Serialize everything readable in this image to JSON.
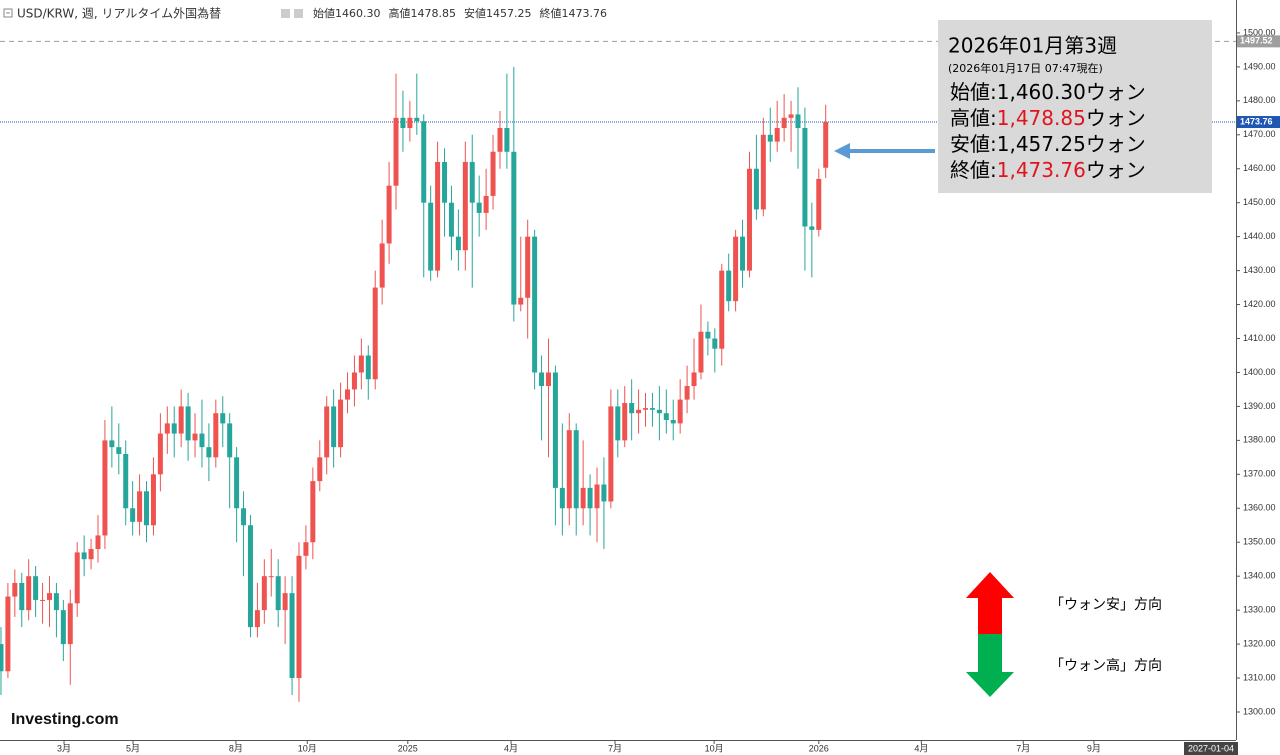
{
  "chart_data": {
    "type": "candlestick",
    "header": {
      "symbol": "USD/KRW, 週, リアルタイム外国為替",
      "ohlc": [
        {
          "label": "始値",
          "value": "1460.30"
        },
        {
          "label": "高値",
          "value": "1478.85"
        },
        {
          "label": "安値",
          "value": "1457.25"
        },
        {
          "label": "終値",
          "value": "1473.76"
        }
      ]
    },
    "annotation": {
      "title": "2026年01月第3週",
      "subtitle": "(2026年01月17日 07:47現在)",
      "unit": "ウォン",
      "rows": [
        {
          "label": "始値:",
          "value": "1,460.30",
          "color": "#000000"
        },
        {
          "label": "高値:",
          "value": "1,478.85",
          "color": "#e0141e"
        },
        {
          "label": "安値:",
          "value": "1,457.25",
          "color": "#000000"
        },
        {
          "label": "終値:",
          "value": "1,473.76",
          "color": "#e0141e"
        }
      ]
    },
    "legend": [
      {
        "label": "「ウォン安」方向",
        "color": "#ff0000"
      },
      {
        "label": "「ウォン高」方向",
        "color": "#00b050"
      }
    ],
    "logo": "Investing.com",
    "crosshair_date": "2027-01-04",
    "up_color": "#ef5350",
    "down_color": "#26a69a",
    "open": [
      1320,
      1312,
      1334,
      1338,
      1330,
      1340,
      1333,
      1333,
      1335,
      1330,
      1320,
      1332,
      1347,
      1345,
      1348,
      1352,
      1380,
      1378,
      1376,
      1360,
      1356,
      1365,
      1355,
      1370,
      1382,
      1385,
      1382,
      1390,
      1380,
      1382,
      1378,
      1375,
      1388,
      1385,
      1375,
      1360,
      1355,
      1325,
      1330,
      1340,
      1340,
      1330,
      1335,
      1310,
      1346,
      1350,
      1368,
      1375,
      1390,
      1378,
      1392,
      1395,
      1400,
      1405,
      1398,
      1425,
      1438,
      1455,
      1475,
      1472,
      1475,
      1474,
      1450,
      1430,
      1462,
      1450,
      1440,
      1436,
      1462,
      1450,
      1447,
      1452,
      1465,
      1472,
      1465,
      1420,
      1422,
      1440,
      1400,
      1396,
      1400,
      1366,
      1360,
      1383,
      1360,
      1366,
      1360,
      1367,
      1362,
      1390,
      1380,
      1391,
      1388,
      1389,
      1389.5,
      1389,
      1388,
      1386,
      1385,
      1392,
      1396,
      1400,
      1412,
      1410,
      1407,
      1430,
      1421,
      1440,
      1430,
      1460,
      1448,
      1470,
      1468,
      1472,
      1475,
      1476,
      1472,
      1443,
      1442,
      1460.3
    ],
    "high": [
      1325,
      1338,
      1342,
      1341,
      1345,
      1343,
      1338,
      1340,
      1338,
      1333,
      1336,
      1350,
      1352,
      1351,
      1358,
      1386,
      1390,
      1385,
      1380,
      1368,
      1370,
      1368,
      1375,
      1388,
      1390,
      1390,
      1395,
      1394,
      1388,
      1392,
      1385,
      1392,
      1393,
      1388,
      1378,
      1365,
      1358,
      1338,
      1345,
      1348,
      1345,
      1340,
      1340,
      1350,
      1355,
      1372,
      1380,
      1393,
      1395,
      1397,
      1400,
      1405,
      1410,
      1408,
      1430,
      1445,
      1462,
      1488,
      1483,
      1480,
      1488,
      1476,
      1455,
      1468,
      1466,
      1455,
      1448,
      1468,
      1470,
      1458,
      1460,
      1470,
      1477,
      1488,
      1490,
      1440,
      1445,
      1442,
      1405,
      1410,
      1402,
      1385,
      1388,
      1385,
      1380,
      1370,
      1372,
      1375,
      1395,
      1395,
      1396,
      1398,
      1395,
      1394,
      1394,
      1396,
      1395,
      1392,
      1398,
      1402,
      1410,
      1420,
      1415,
      1413,
      1432,
      1435,
      1442,
      1445,
      1465,
      1470,
      1475,
      1478,
      1480,
      1482,
      1480,
      1484,
      1478,
      1450,
      1460,
      1478.85
    ],
    "low": [
      1305,
      1310,
      1328,
      1325,
      1327,
      1328,
      1326,
      1325,
      1322,
      1315,
      1308,
      1328,
      1340,
      1342,
      1344,
      1348,
      1372,
      1370,
      1355,
      1352,
      1352,
      1350,
      1352,
      1365,
      1376,
      1375,
      1378,
      1374,
      1375,
      1372,
      1368,
      1372,
      1378,
      1360,
      1350,
      1340,
      1322,
      1322,
      1326,
      1334,
      1325,
      1320,
      1305,
      1303,
      1342,
      1345,
      1365,
      1370,
      1372,
      1375,
      1388,
      1390,
      1395,
      1392,
      1395,
      1420,
      1432,
      1448,
      1465,
      1468,
      1470,
      1428,
      1427,
      1428,
      1440,
      1433,
      1430,
      1430,
      1425,
      1440,
      1442,
      1448,
      1460,
      1460,
      1415,
      1418,
      1410,
      1395,
      1380,
      1375,
      1355,
      1352,
      1355,
      1352,
      1355,
      1352,
      1350,
      1348,
      1360,
      1375,
      1378,
      1380,
      1382,
      1384,
      1384,
      1380,
      1382,
      1380,
      1382,
      1388,
      1392,
      1398,
      1405,
      1400,
      1402,
      1418,
      1418,
      1425,
      1428,
      1445,
      1446,
      1462,
      1465,
      1468,
      1465,
      1460,
      1430,
      1428,
      1440,
      1457.25
    ],
    "close": [
      1312,
      1334,
      1338,
      1330,
      1340,
      1333,
      1333,
      1335,
      1330,
      1320,
      1332,
      1347,
      1345,
      1348,
      1352,
      1380,
      1378,
      1376,
      1360,
      1356,
      1365,
      1355,
      1370,
      1382,
      1385,
      1382,
      1390,
      1380,
      1382,
      1378,
      1375,
      1388,
      1385,
      1375,
      1360,
      1355,
      1325,
      1330,
      1340,
      1340,
      1330,
      1335,
      1310,
      1346,
      1350,
      1368,
      1375,
      1390,
      1378,
      1392,
      1395,
      1400,
      1405,
      1398,
      1425,
      1438,
      1455,
      1475,
      1472,
      1475,
      1474,
      1450,
      1430,
      1462,
      1450,
      1440,
      1436,
      1462,
      1450,
      1447,
      1452,
      1465,
      1472,
      1465,
      1420,
      1422,
      1440,
      1400,
      1396,
      1400,
      1366,
      1360,
      1383,
      1360,
      1366,
      1360,
      1367,
      1362,
      1390,
      1380,
      1391,
      1388,
      1389,
      1389.5,
      1389,
      1388,
      1386,
      1385,
      1392,
      1396,
      1400,
      1412,
      1410,
      1407,
      1430,
      1421,
      1440,
      1430,
      1460,
      1448,
      1470,
      1468,
      1472,
      1475,
      1476,
      1472,
      1443,
      1442,
      1457,
      1473.76
    ],
    "xlim": [
      -0.14,
      178.2
    ],
    "xticks": [
      {
        "value": 9.1,
        "label": "3月"
      },
      {
        "value": 19.05,
        "label": "5月"
      },
      {
        "value": 33.9,
        "label": "8月"
      },
      {
        "value": 44.2,
        "label": "10月"
      },
      {
        "value": 58.7,
        "label": "2025"
      },
      {
        "value": 73.6,
        "label": "4月"
      },
      {
        "value": 88.6,
        "label": "7月"
      },
      {
        "value": 102.9,
        "label": "10月"
      },
      {
        "value": 118.0,
        "label": "2026"
      },
      {
        "value": 132.8,
        "label": "4月"
      },
      {
        "value": 147.5,
        "label": "7月"
      },
      {
        "value": 157.7,
        "label": "9月"
      }
    ],
    "ylim": [
      1291.75,
      1509.7
    ],
    "yticks": [
      {
        "value": 1300,
        "label": "1300.00"
      },
      {
        "value": 1310,
        "label": "1310.00"
      },
      {
        "value": 1320,
        "label": "1320.00"
      },
      {
        "value": 1330,
        "label": "1330.00"
      },
      {
        "value": 1340,
        "label": "1340.00"
      },
      {
        "value": 1350,
        "label": "1350.00"
      },
      {
        "value": 1360,
        "label": "1360.00"
      },
      {
        "value": 1370,
        "label": "1370.00"
      },
      {
        "value": 1380,
        "label": "1380.00"
      },
      {
        "value": 1390,
        "label": "1390.00"
      },
      {
        "value": 1400,
        "label": "1400.00"
      },
      {
        "value": 1410,
        "label": "1410.00"
      },
      {
        "value": 1420,
        "label": "1420.00"
      },
      {
        "value": 1430,
        "label": "1430.00"
      },
      {
        "value": 1440,
        "label": "1440.00"
      },
      {
        "value": 1450,
        "label": "1450.00"
      },
      {
        "value": 1460,
        "label": "1460.00"
      },
      {
        "value": 1470,
        "label": "1470.00"
      },
      {
        "value": 1480,
        "label": "1480.00"
      },
      {
        "value": 1490,
        "label": "1490.00"
      },
      {
        "value": 1500,
        "label": "1500.00"
      }
    ],
    "price_lines": [
      {
        "value": 1497.52,
        "color": "#9e9e9e"
      },
      {
        "value": 1473.76,
        "color": "#1e56b4"
      }
    ]
  }
}
